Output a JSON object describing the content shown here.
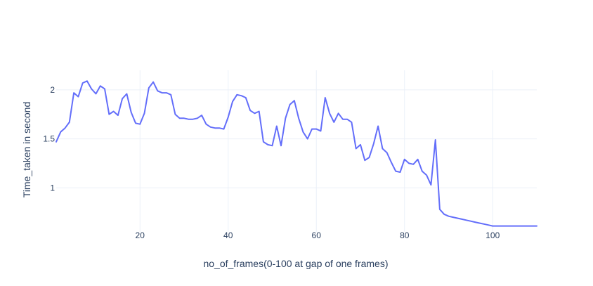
{
  "chart_data": {
    "type": "line",
    "xlabel": "no_of_frames(0-100 at gap of one frames)",
    "ylabel": "Time_taken in second",
    "xlim": [
      1,
      110
    ],
    "ylim": [
      0.55,
      2.2
    ],
    "xticks": [
      20,
      40,
      60,
      80,
      100
    ],
    "yticks": [
      1,
      1.5,
      2
    ],
    "grid": true,
    "colors": {
      "line": "#636efa",
      "grid": "#ebf0f8",
      "text": "#2a3f5f"
    },
    "series": [
      {
        "x": [
          1,
          2,
          3,
          4,
          5,
          6,
          7,
          8,
          9,
          10,
          11,
          12,
          13,
          14,
          15,
          16,
          17,
          18,
          19,
          20,
          21,
          22,
          23,
          24,
          25,
          26,
          27,
          28,
          29,
          30,
          31,
          32,
          33,
          34,
          35,
          36,
          37,
          38,
          39,
          40,
          41,
          42,
          43,
          44,
          45,
          46,
          47,
          48,
          49,
          50,
          51,
          52,
          53,
          54,
          55,
          56,
          57,
          58,
          59,
          60,
          61,
          62,
          63,
          64,
          65,
          66,
          67,
          68,
          69,
          70,
          71,
          72,
          73,
          74,
          75,
          76,
          77,
          78,
          79,
          80,
          81,
          82,
          83,
          84,
          85,
          86,
          87,
          88,
          89,
          90,
          91,
          92,
          93,
          94,
          95,
          96,
          97,
          98,
          99,
          100,
          101,
          102,
          103,
          104,
          105,
          106,
          107,
          108,
          109,
          110
        ],
        "y": [
          1.47,
          1.57,
          1.61,
          1.67,
          1.97,
          1.93,
          2.07,
          2.09,
          2.01,
          1.96,
          2.04,
          2.01,
          1.75,
          1.78,
          1.74,
          1.91,
          1.96,
          1.77,
          1.66,
          1.65,
          1.76,
          2.02,
          2.08,
          1.99,
          1.97,
          1.97,
          1.95,
          1.75,
          1.71,
          1.71,
          1.7,
          1.7,
          1.71,
          1.74,
          1.65,
          1.62,
          1.61,
          1.61,
          1.6,
          1.72,
          1.88,
          1.95,
          1.94,
          1.92,
          1.79,
          1.76,
          1.78,
          1.47,
          1.44,
          1.43,
          1.63,
          1.43,
          1.71,
          1.85,
          1.89,
          1.71,
          1.57,
          1.5,
          1.6,
          1.6,
          1.58,
          1.92,
          1.76,
          1.67,
          1.76,
          1.7,
          1.7,
          1.67,
          1.4,
          1.44,
          1.28,
          1.31,
          1.45,
          1.63,
          1.4,
          1.36,
          1.26,
          1.17,
          1.16,
          1.29,
          1.25,
          1.24,
          1.29,
          1.17,
          1.13,
          1.03,
          1.49,
          0.78,
          0.73,
          0.71,
          0.7,
          0.69,
          0.68,
          0.67,
          0.66,
          0.65,
          0.64,
          0.63,
          0.62,
          0.61,
          0.61,
          0.61,
          0.61,
          0.61,
          0.61,
          0.61,
          0.61,
          0.61,
          0.61,
          0.61
        ]
      }
    ]
  }
}
